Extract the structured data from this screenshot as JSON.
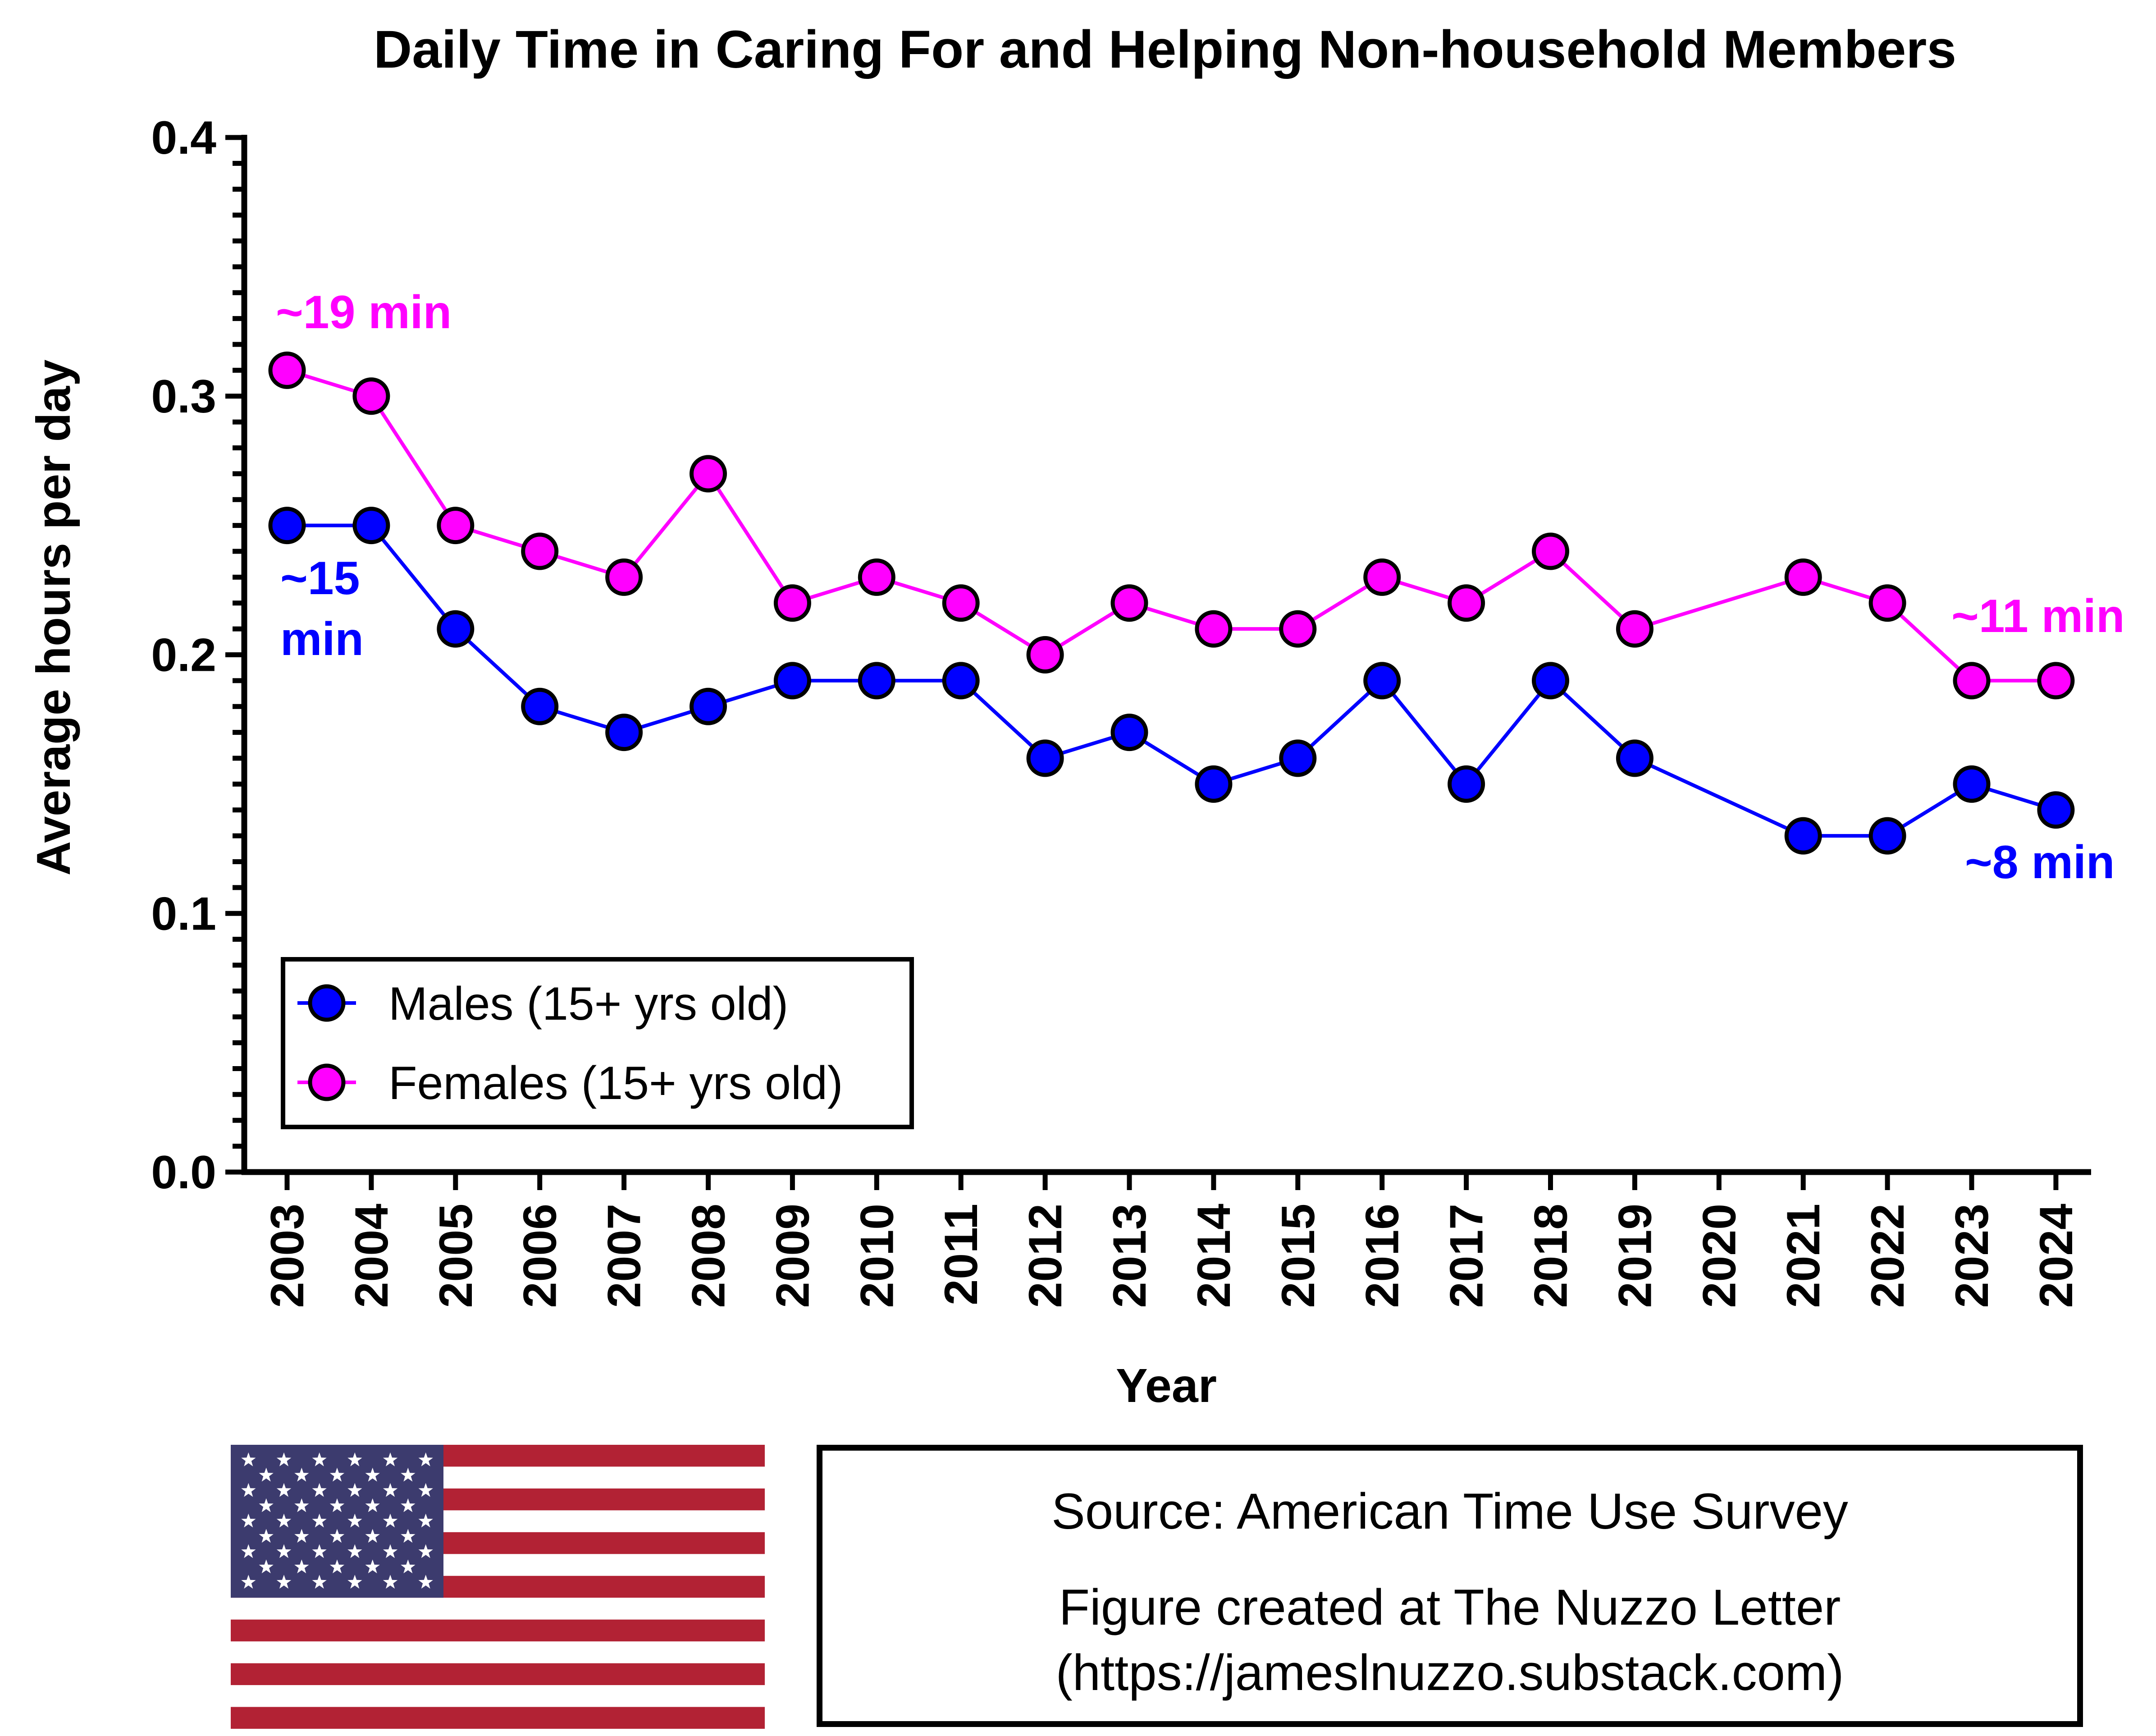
{
  "chart_data": {
    "type": "line",
    "title": "Daily Time in Caring For and Helping Non-household Members",
    "xlabel": "Year",
    "ylabel": "Average hours per day",
    "ylim": [
      0,
      0.4
    ],
    "yticks": [
      0.0,
      0.1,
      0.2,
      0.3,
      0.4
    ],
    "ytick_labels": [
      "0.0",
      "0.1",
      "0.2",
      "0.3",
      "0.4"
    ],
    "categories": [
      "2003",
      "2004",
      "2005",
      "2006",
      "2007",
      "2008",
      "2009",
      "2010",
      "2011",
      "2012",
      "2013",
      "2014",
      "2015",
      "2016",
      "2017",
      "2018",
      "2019",
      "2020",
      "2021",
      "2022",
      "2023",
      "2024"
    ],
    "series": [
      {
        "name": "Males (15+ yrs old)",
        "color": "#0000ff",
        "values": [
          0.25,
          0.25,
          0.21,
          0.18,
          0.17,
          0.18,
          0.19,
          0.19,
          0.19,
          0.16,
          0.17,
          0.15,
          0.16,
          0.19,
          0.15,
          0.19,
          0.16,
          null,
          0.13,
          0.13,
          0.15,
          0.14
        ]
      },
      {
        "name": "Females (15+ yrs old)",
        "color": "#ff00ff",
        "values": [
          0.31,
          0.3,
          0.25,
          0.24,
          0.23,
          0.27,
          0.22,
          0.23,
          0.22,
          0.2,
          0.22,
          0.21,
          0.21,
          0.23,
          0.22,
          0.24,
          0.21,
          null,
          0.23,
          0.22,
          0.19,
          0.19
        ]
      }
    ],
    "annotations": [
      {
        "text": "~19 min",
        "series": "Females (15+ yrs old)",
        "year": "2003",
        "color": "#ff00ff"
      },
      {
        "text": "~15 min",
        "lines": [
          "~15",
          "min"
        ],
        "series": "Males (15+ yrs old)",
        "year": "2003",
        "color": "#0000ff"
      },
      {
        "text": "~11 min",
        "series": "Females (15+ yrs old)",
        "year": "2024",
        "color": "#ff00ff"
      },
      {
        "text": "~8 min",
        "series": "Males (15+ yrs old)",
        "year": "2024",
        "color": "#0000ff"
      }
    ],
    "legend_position": "bottom-left",
    "grid": false
  },
  "source": {
    "text": "Source: American Time Use Survey",
    "credit_line1": "Figure created at The Nuzzo Letter",
    "credit_line2": "(https://jameslnuzzo.substack.com)"
  },
  "flag": {
    "name": "us-flag",
    "red": "#b22234",
    "white": "#ffffff",
    "blue": "#3c3b6e"
  }
}
